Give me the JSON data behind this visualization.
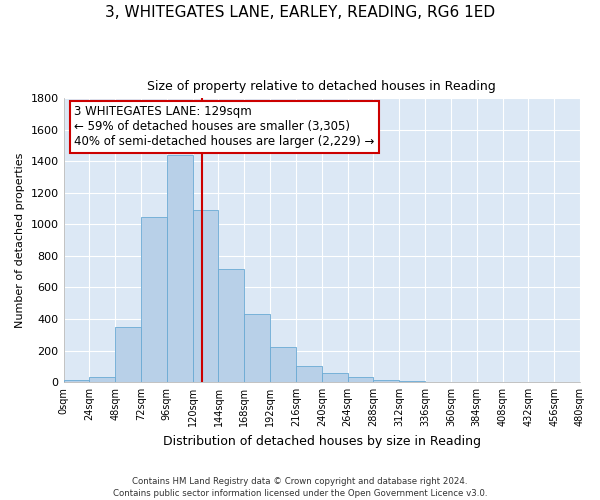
{
  "title": "3, WHITEGATES LANE, EARLEY, READING, RG6 1ED",
  "subtitle": "Size of property relative to detached houses in Reading",
  "xlabel": "Distribution of detached houses by size in Reading",
  "ylabel": "Number of detached properties",
  "bar_color": "#b8d0e8",
  "bar_edge_color": "#6aaad4",
  "background_color": "#dce8f5",
  "bin_edges": [
    0,
    24,
    48,
    72,
    96,
    120,
    144,
    168,
    192,
    216,
    240,
    264,
    288,
    312,
    336,
    360,
    384,
    408,
    432,
    456,
    480
  ],
  "bin_labels": [
    "0sqm",
    "24sqm",
    "48sqm",
    "72sqm",
    "96sqm",
    "120sqm",
    "144sqm",
    "168sqm",
    "192sqm",
    "216sqm",
    "240sqm",
    "264sqm",
    "288sqm",
    "312sqm",
    "336sqm",
    "360sqm",
    "384sqm",
    "408sqm",
    "432sqm",
    "456sqm",
    "480sqm"
  ],
  "counts": [
    10,
    30,
    350,
    1050,
    1440,
    1090,
    720,
    430,
    220,
    105,
    55,
    30,
    15,
    5,
    2,
    1,
    0,
    0,
    0,
    0
  ],
  "vline_x": 129,
  "vline_color": "#cc0000",
  "annotation_title": "3 WHITEGATES LANE: 129sqm",
  "annotation_line1": "← 59% of detached houses are smaller (3,305)",
  "annotation_line2": "40% of semi-detached houses are larger (2,229) →",
  "annotation_box_color": "#ffffff",
  "annotation_box_edge": "#cc0000",
  "ylim": [
    0,
    1800
  ],
  "yticks": [
    0,
    200,
    400,
    600,
    800,
    1000,
    1200,
    1400,
    1600,
    1800
  ],
  "footer_line1": "Contains HM Land Registry data © Crown copyright and database right 2024.",
  "footer_line2": "Contains public sector information licensed under the Open Government Licence v3.0."
}
